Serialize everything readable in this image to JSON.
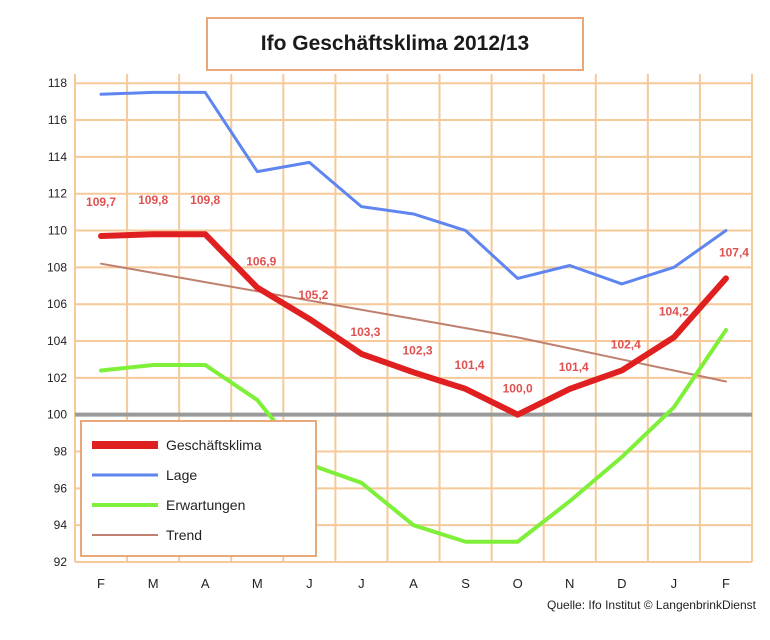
{
  "title": "Ifo Geschäftsklima 2012/13",
  "source": "Quelle: Ifo Institut © LangenbrinkDienst",
  "colors": {
    "grid": "#f5c998",
    "axis_100": "#9a9a9a",
    "geschaeftsklima": "#e02020",
    "lage": "#5f86f0",
    "erwartungen": "#7ef03a",
    "trend": "#c08070",
    "data_label": "#e05050"
  },
  "chart_data": {
    "type": "line",
    "title": "Ifo Geschäftsklima 2012/13",
    "categories": [
      "F",
      "M",
      "A",
      "M",
      "J",
      "J",
      "A",
      "S",
      "O",
      "N",
      "D",
      "J",
      "F"
    ],
    "yticks": [
      92,
      94,
      96,
      98,
      100,
      102,
      104,
      106,
      108,
      110,
      112,
      114,
      116,
      118
    ],
    "ylim": [
      92,
      118.5
    ],
    "grid": true,
    "legend_position": "bottom-left",
    "series": [
      {
        "name": "Geschäftsklima",
        "values": [
          109.7,
          109.8,
          109.8,
          106.9,
          105.2,
          103.3,
          102.3,
          101.4,
          100.0,
          101.4,
          102.4,
          104.2,
          107.4
        ],
        "labels": [
          "109,7",
          "109,8",
          "109,8",
          "106,9",
          "105,2",
          "103,3",
          "102,3",
          "101,4",
          "100,0",
          "101,4",
          "102,4",
          "104,2",
          "107,4"
        ]
      },
      {
        "name": "Lage",
        "values": [
          117.4,
          117.5,
          117.5,
          113.2,
          113.7,
          111.3,
          110.9,
          110.0,
          107.4,
          108.1,
          107.1,
          108.0,
          110.0
        ]
      },
      {
        "name": "Erwartungen",
        "values": [
          102.4,
          102.7,
          102.7,
          100.8,
          97.3,
          96.3,
          94.0,
          93.1,
          93.1,
          95.3,
          97.7,
          100.4,
          104.6
        ]
      },
      {
        "name": "Trend",
        "values": [
          108.2,
          107.7,
          107.2,
          106.7,
          106.2,
          105.7,
          105.2,
          104.7,
          104.2,
          103.6,
          103.0,
          102.4,
          101.8
        ]
      }
    ]
  }
}
